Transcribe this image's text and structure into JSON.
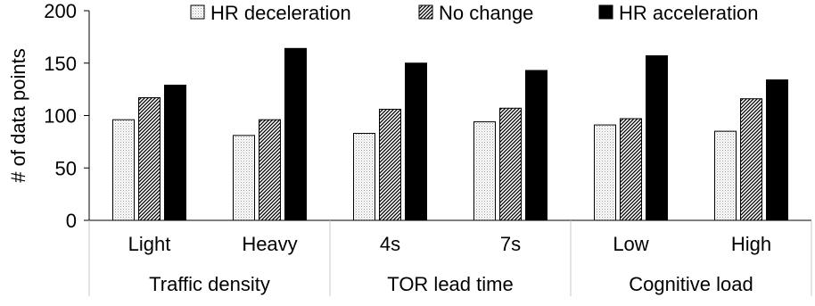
{
  "chart_data": {
    "type": "bar",
    "ylabel": "# of data points",
    "ylim": [
      0,
      200
    ],
    "yticks": [
      0,
      50,
      100,
      150,
      200
    ],
    "categories": [
      "Light",
      "Heavy",
      "4s",
      "7s",
      "Low",
      "High"
    ],
    "groups": [
      {
        "label": "Traffic density",
        "categories": [
          "Light",
          "Heavy"
        ]
      },
      {
        "label": "TOR lead time",
        "categories": [
          "4s",
          "7s"
        ]
      },
      {
        "label": "Cognitive load",
        "categories": [
          "Low",
          "High"
        ]
      }
    ],
    "series": [
      {
        "name": "HR deceleration",
        "pattern": "dotted",
        "color": "#ffffff",
        "values": [
          96,
          81,
          83,
          94,
          91,
          85
        ]
      },
      {
        "name": "No change",
        "pattern": "hatched",
        "color": "#555555",
        "values": [
          117,
          96,
          106,
          107,
          97,
          116
        ]
      },
      {
        "name": "HR acceleration",
        "pattern": "solid",
        "color": "#000000",
        "values": [
          129,
          164,
          150,
          143,
          157,
          134
        ]
      }
    ],
    "legend": "top",
    "grid": false
  }
}
